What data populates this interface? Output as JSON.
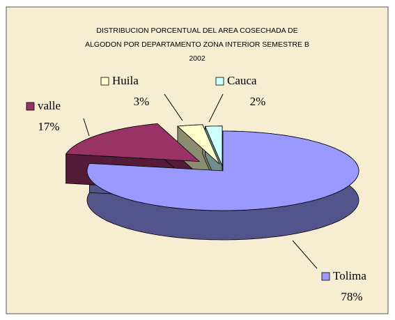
{
  "chart_data": {
    "type": "pie",
    "title": [
      "DISTRIBUCION PORCENTUAL DEL AREA COSECHADA DE",
      "ALGODON POR DEPARTAMENTO ZONA INTERIOR SEMESTRE B",
      "2002"
    ],
    "categories": [
      "Tolima",
      "valle",
      "Huila",
      "Cauca"
    ],
    "values": [
      78,
      17,
      3,
      2
    ],
    "value_labels": [
      "78%",
      "17%",
      "3%",
      "2%"
    ],
    "colors": [
      "#9999ff",
      "#993366",
      "#ffffcc",
      "#ccffff"
    ]
  }
}
